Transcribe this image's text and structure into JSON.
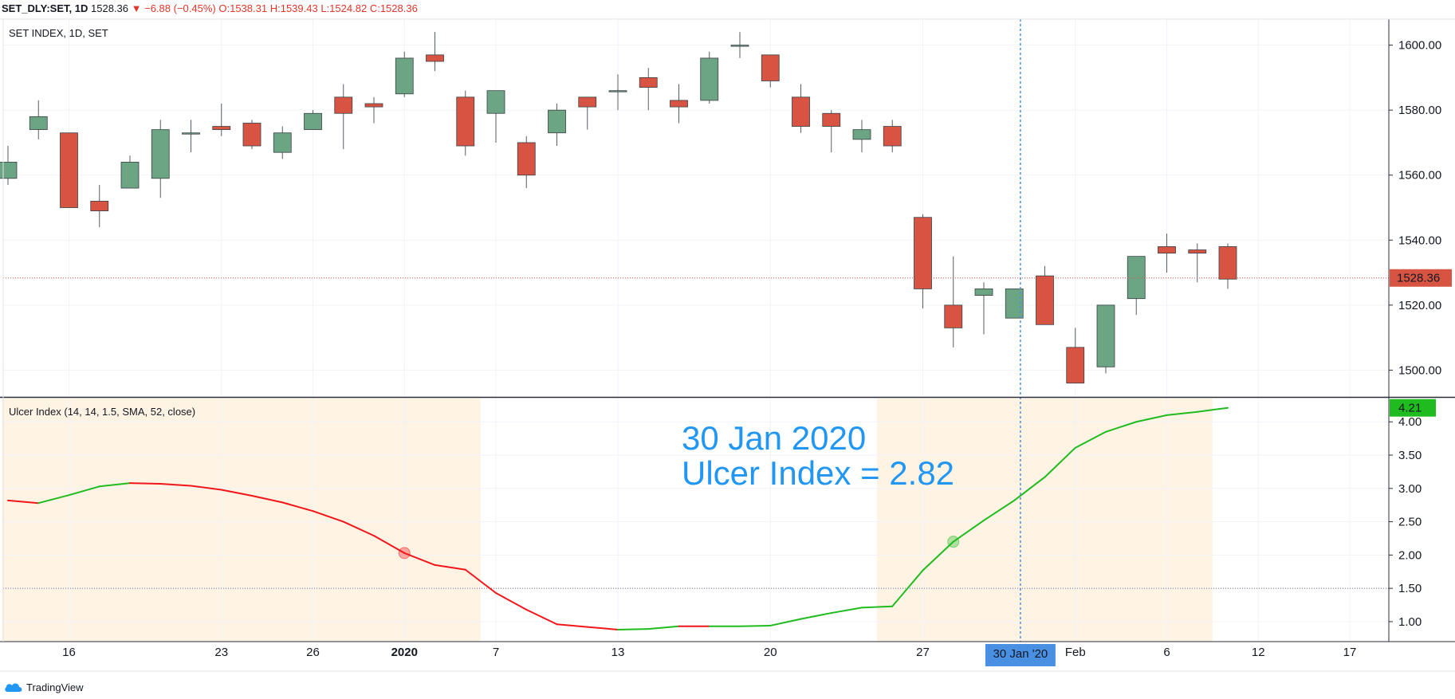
{
  "header": {
    "symbol": "SET_DLY:SET, 1D",
    "last": "1528.36",
    "change": "−6.88 (−0.45%)",
    "open": "O:1538.31",
    "high": "H:1539.43",
    "low": "L:1524.82",
    "close": "C:1528.36"
  },
  "price_pane": {
    "title": "SET INDEX, 1D, SET",
    "last_price_label": "1528.36"
  },
  "indicator_pane": {
    "title": "Ulcer Index (14, 14, 1.5, SMA, 52, close)",
    "last_value_label": "4.21"
  },
  "annotation": {
    "line1": "30 Jan 2020",
    "line2": "Ulcer Index = 2.82"
  },
  "crosshair_date_label": "30 Jan '20",
  "branding": {
    "label": "TradingView"
  },
  "colors": {
    "up": "#6ba583",
    "down": "#d75442",
    "ulcer_up": "#1fbb1f",
    "ulcer_down": "#f2161b",
    "highlight": "#fff3e3",
    "annotation": "#2196f3",
    "crosshair": "#4a90e2"
  },
  "chart_data": [
    {
      "type": "candlestick",
      "title": "SET INDEX, 1D, SET",
      "ylim": [
        1492,
        1608
      ],
      "y_ticks": [
        1500,
        1520,
        1540,
        1560,
        1580,
        1600
      ],
      "y_tick_labels": [
        "1500.00",
        "1520.00",
        "1540.00",
        "1560.00",
        "1580.00",
        "1600.00"
      ],
      "x_ticks": [
        {
          "label": "16",
          "i": 2
        },
        {
          "label": "23",
          "i": 7
        },
        {
          "label": "26",
          "i": 10
        },
        {
          "label": "2020",
          "i": 13,
          "bold": true
        },
        {
          "label": "7",
          "i": 16
        },
        {
          "label": "13",
          "i": 20
        },
        {
          "label": "20",
          "i": 25
        },
        {
          "label": "27",
          "i": 30
        },
        {
          "label": "Feb",
          "i": 35
        },
        {
          "label": "6",
          "i": 38
        },
        {
          "label": "12",
          "i": 41
        },
        {
          "label": "17",
          "i": 44
        }
      ],
      "last_price": 1528.36,
      "candles": [
        {
          "o": 1559,
          "h": 1569,
          "l": 1557,
          "c": 1564
        },
        {
          "o": 1574,
          "h": 1583,
          "l": 1571,
          "c": 1578
        },
        {
          "o": 1573,
          "h": 1573,
          "l": 1550,
          "c": 1550
        },
        {
          "o": 1552,
          "h": 1557,
          "l": 1544,
          "c": 1549
        },
        {
          "o": 1556,
          "h": 1566,
          "l": 1556,
          "c": 1564
        },
        {
          "o": 1559,
          "h": 1577,
          "l": 1553,
          "c": 1574
        },
        {
          "o": 1573,
          "h": 1577,
          "l": 1567,
          "c": 1573
        },
        {
          "o": 1575,
          "h": 1582,
          "l": 1572,
          "c": 1574
        },
        {
          "o": 1576,
          "h": 1577,
          "l": 1568,
          "c": 1569
        },
        {
          "o": 1567,
          "h": 1575,
          "l": 1565,
          "c": 1573
        },
        {
          "o": 1574,
          "h": 1580,
          "l": 1574,
          "c": 1579
        },
        {
          "o": 1584,
          "h": 1588,
          "l": 1568,
          "c": 1579
        },
        {
          "o": 1582,
          "h": 1584,
          "l": 1576,
          "c": 1581
        },
        {
          "o": 1585,
          "h": 1598,
          "l": 1584,
          "c": 1596
        },
        {
          "o": 1597,
          "h": 1604,
          "l": 1592,
          "c": 1595
        },
        {
          "o": 1584,
          "h": 1586,
          "l": 1566,
          "c": 1569
        },
        {
          "o": 1579,
          "h": 1586,
          "l": 1570,
          "c": 1586
        },
        {
          "o": 1570,
          "h": 1572,
          "l": 1556,
          "c": 1560
        },
        {
          "o": 1573,
          "h": 1582,
          "l": 1569,
          "c": 1580
        },
        {
          "o": 1584,
          "h": 1584,
          "l": 1574,
          "c": 1581
        },
        {
          "o": 1586,
          "h": 1591,
          "l": 1580,
          "c": 1586
        },
        {
          "o": 1590,
          "h": 1593,
          "l": 1580,
          "c": 1587
        },
        {
          "o": 1583,
          "h": 1588,
          "l": 1576,
          "c": 1581
        },
        {
          "o": 1583,
          "h": 1598,
          "l": 1582,
          "c": 1596
        },
        {
          "o": 1600,
          "h": 1604,
          "l": 1596,
          "c": 1600
        },
        {
          "o": 1597,
          "h": 1597,
          "l": 1587,
          "c": 1589
        },
        {
          "o": 1584,
          "h": 1588,
          "l": 1573,
          "c": 1575
        },
        {
          "o": 1579,
          "h": 1580,
          "l": 1567,
          "c": 1575
        },
        {
          "o": 1571,
          "h": 1577,
          "l": 1567,
          "c": 1574
        },
        {
          "o": 1575,
          "h": 1577,
          "l": 1567,
          "c": 1569
        },
        {
          "o": 1547,
          "h": 1548,
          "l": 1519,
          "c": 1525
        },
        {
          "o": 1520,
          "h": 1535,
          "l": 1507,
          "c": 1513
        },
        {
          "o": 1523,
          "h": 1527,
          "l": 1511,
          "c": 1525
        },
        {
          "o": 1516,
          "h": 1525,
          "l": 1516,
          "c": 1525
        },
        {
          "o": 1529,
          "h": 1532,
          "l": 1514,
          "c": 1514
        },
        {
          "o": 1507,
          "h": 1513,
          "l": 1496,
          "c": 1496
        },
        {
          "o": 1501,
          "h": 1520,
          "l": 1499,
          "c": 1520
        },
        {
          "o": 1522,
          "h": 1535,
          "l": 1517,
          "c": 1535
        },
        {
          "o": 1538,
          "h": 1542,
          "l": 1530,
          "c": 1536
        },
        {
          "o": 1537,
          "h": 1539,
          "l": 1527,
          "c": 1536
        },
        {
          "o": 1538,
          "h": 1539,
          "l": 1525,
          "c": 1528
        }
      ]
    },
    {
      "type": "line",
      "title": "Ulcer Index (14, 14, 1.5, SMA, 52, close)",
      "ylim": [
        0.7,
        4.35
      ],
      "y_ticks": [
        1.0,
        1.5,
        2.0,
        2.5,
        3.0,
        3.5,
        4.0
      ],
      "y_tick_labels": [
        "1.00",
        "1.50",
        "2.00",
        "2.50",
        "3.00",
        "3.50",
        "4.00"
      ],
      "threshold": 1.5,
      "highlight_ranges_i": [
        [
          -0.2,
          15.5
        ],
        [
          28.5,
          39.5
        ]
      ],
      "crosshair_i": 33.2,
      "crosshair_value": 2.82,
      "signal_points": [
        {
          "i": 13,
          "v": 2.03,
          "color": "down"
        },
        {
          "i": 31,
          "v": 2.2,
          "color": "up"
        }
      ],
      "points": [
        {
          "i": 0,
          "v": 2.82,
          "c": "down"
        },
        {
          "i": 1,
          "v": 2.78,
          "c": "down"
        },
        {
          "i": 2,
          "v": 2.9,
          "c": "up"
        },
        {
          "i": 3,
          "v": 3.03,
          "c": "up"
        },
        {
          "i": 4,
          "v": 3.08,
          "c": "up"
        },
        {
          "i": 5,
          "v": 3.07,
          "c": "down"
        },
        {
          "i": 6,
          "v": 3.04,
          "c": "down"
        },
        {
          "i": 7,
          "v": 2.98,
          "c": "down"
        },
        {
          "i": 8,
          "v": 2.89,
          "c": "down"
        },
        {
          "i": 9,
          "v": 2.79,
          "c": "down"
        },
        {
          "i": 10,
          "v": 2.66,
          "c": "down"
        },
        {
          "i": 11,
          "v": 2.5,
          "c": "down"
        },
        {
          "i": 12,
          "v": 2.29,
          "c": "down"
        },
        {
          "i": 13,
          "v": 2.03,
          "c": "down"
        },
        {
          "i": 14,
          "v": 1.85,
          "c": "down"
        },
        {
          "i": 15,
          "v": 1.78,
          "c": "down"
        },
        {
          "i": 16,
          "v": 1.43,
          "c": "down"
        },
        {
          "i": 17,
          "v": 1.18,
          "c": "down"
        },
        {
          "i": 18,
          "v": 0.96,
          "c": "down"
        },
        {
          "i": 19,
          "v": 0.92,
          "c": "down"
        },
        {
          "i": 20,
          "v": 0.88,
          "c": "down"
        },
        {
          "i": 21,
          "v": 0.89,
          "c": "up"
        },
        {
          "i": 22,
          "v": 0.93,
          "c": "up"
        },
        {
          "i": 23,
          "v": 0.93,
          "c": "down"
        },
        {
          "i": 24,
          "v": 0.93,
          "c": "up"
        },
        {
          "i": 25,
          "v": 0.94,
          "c": "up"
        },
        {
          "i": 26,
          "v": 1.04,
          "c": "up"
        },
        {
          "i": 27,
          "v": 1.13,
          "c": "up"
        },
        {
          "i": 28,
          "v": 1.21,
          "c": "up"
        },
        {
          "i": 29,
          "v": 1.23,
          "c": "up"
        },
        {
          "i": 30,
          "v": 1.77,
          "c": "up"
        },
        {
          "i": 31,
          "v": 2.2,
          "c": "up"
        },
        {
          "i": 32,
          "v": 2.52,
          "c": "up"
        },
        {
          "i": 33,
          "v": 2.82,
          "c": "up"
        },
        {
          "i": 34,
          "v": 3.17,
          "c": "up"
        },
        {
          "i": 35,
          "v": 3.61,
          "c": "up"
        },
        {
          "i": 36,
          "v": 3.85,
          "c": "up"
        },
        {
          "i": 37,
          "v": 4.0,
          "c": "up"
        },
        {
          "i": 38,
          "v": 4.1,
          "c": "up"
        },
        {
          "i": 39,
          "v": 4.15,
          "c": "up"
        },
        {
          "i": 40,
          "v": 4.21,
          "c": "up"
        }
      ]
    }
  ]
}
